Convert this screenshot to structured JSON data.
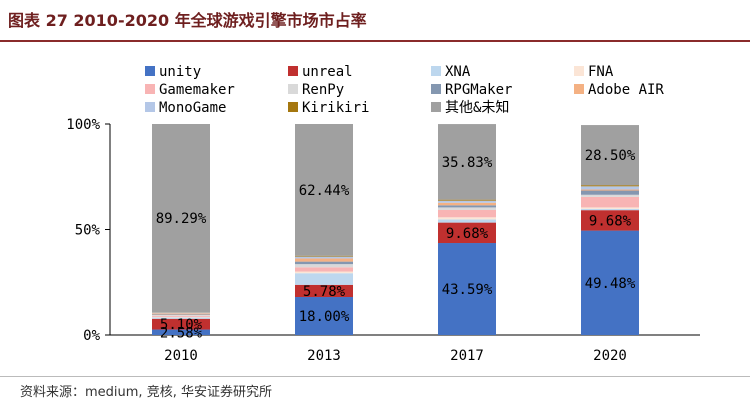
{
  "header": {
    "title": "图表 27 2010-2020 年全球游戏引擎市场市占率"
  },
  "footer": {
    "source": "资料来源：medium, 竞核, 华安证券研究所"
  },
  "chart_data": {
    "type": "bar",
    "stacked": true,
    "categories": [
      "2010",
      "2013",
      "2017",
      "2020"
    ],
    "ylim": [
      0,
      100
    ],
    "yticks": [
      "0%",
      "50%",
      "100%"
    ],
    "legend_position": "top",
    "series": [
      {
        "name": "unity",
        "color": "#4472C4",
        "values": [
          2.58,
          18.0,
          43.59,
          49.48
        ],
        "labels": [
          "2.58%",
          "18.00%",
          "43.59%",
          "49.48%"
        ]
      },
      {
        "name": "unreal",
        "color": "#C0302F",
        "values": [
          5.1,
          5.78,
          9.68,
          9.68
        ],
        "labels": [
          "5.10%",
          "5.78%",
          "9.68%",
          "9.68%"
        ]
      },
      {
        "name": "XNA",
        "color": "#BDD7EE",
        "values": [
          0.6,
          5.5,
          1.5,
          0.6
        ],
        "labels": [
          "",
          "",
          "",
          ""
        ]
      },
      {
        "name": "FNA",
        "color": "#FBE5D6",
        "values": [
          0.3,
          0.8,
          1.0,
          0.7
        ],
        "labels": [
          "",
          "",
          "",
          ""
        ]
      },
      {
        "name": "Gamemaker",
        "color": "#F8B4B4",
        "values": [
          0.5,
          2.0,
          3.5,
          5.0
        ],
        "labels": [
          "",
          "",
          "",
          ""
        ]
      },
      {
        "name": "RenPy",
        "color": "#D9D9D9",
        "values": [
          0.4,
          1.5,
          1.2,
          1.0
        ],
        "labels": [
          "",
          "",
          "",
          ""
        ]
      },
      {
        "name": "RPGMaker",
        "color": "#8497B0",
        "values": [
          0.3,
          1.2,
          1.0,
          2.0
        ],
        "labels": [
          "",
          "",
          "",
          ""
        ]
      },
      {
        "name": "Adobe AIR",
        "color": "#F4B183",
        "values": [
          0.5,
          1.5,
          1.2,
          0.5
        ],
        "labels": [
          "",
          "",
          "",
          ""
        ]
      },
      {
        "name": "MonoGame",
        "color": "#B4C7E7",
        "values": [
          0.33,
          0.9,
          1.0,
          1.5
        ],
        "labels": [
          "",
          "",
          "",
          ""
        ]
      },
      {
        "name": "Kirikiri",
        "color": "#A5770F",
        "values": [
          0.1,
          0.38,
          0.47,
          0.54
        ],
        "labels": [
          "",
          "",
          "",
          ""
        ]
      },
      {
        "name": "其他&未知",
        "color": "#A0A0A0",
        "values": [
          89.29,
          62.44,
          35.83,
          28.5
        ],
        "labels": [
          "89.29%",
          "62.44%",
          "35.83%",
          "28.50%"
        ]
      }
    ]
  }
}
